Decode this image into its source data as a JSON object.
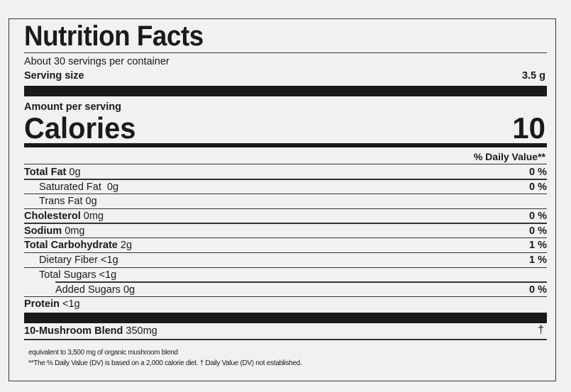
{
  "title": "Nutrition Facts",
  "servings_per_container": "About 30 servings per container",
  "serving_size": {
    "label": "Serving size",
    "value": "3.5 g"
  },
  "amount_per_serving": "Amount per serving",
  "calories": {
    "label": "Calories",
    "value": "10"
  },
  "daily_value_header": "% Daily Value**",
  "nutrients": [
    {
      "name": "Total Fat",
      "amount": "0g",
      "dv": "0 %",
      "bold": true,
      "indent": 0
    },
    {
      "name": "Saturated Fat",
      "amount": " 0g",
      "dv": "0 %",
      "bold": false,
      "indent": 1
    },
    {
      "name": "Trans Fat",
      "amount": "0g",
      "dv": "",
      "bold": false,
      "indent": 1
    },
    {
      "name": "Cholesterol",
      "amount": "0mg",
      "dv": "0 %",
      "bold": true,
      "indent": 0
    },
    {
      "name": "Sodium",
      "amount": "0mg",
      "dv": "0 %",
      "bold": true,
      "indent": 0
    },
    {
      "name": "Total Carbohydrate",
      "amount": "2g",
      "dv": "1 %",
      "bold": true,
      "indent": 0
    },
    {
      "name": "Dietary Fiber",
      "amount": "<1g",
      "dv": "1 %",
      "bold": false,
      "indent": 1
    },
    {
      "name": "Total Sugars",
      "amount": "<1g",
      "dv": "",
      "bold": false,
      "indent": 1
    },
    {
      "name": "Added Sugars",
      "amount": "0g",
      "dv": "0 %",
      "bold": false,
      "indent": 2
    },
    {
      "name": "Protein",
      "amount": "<1g",
      "dv": "",
      "bold": true,
      "indent": 0
    }
  ],
  "blend": {
    "name": "10-Mushroom Blend",
    "amount": "350mg",
    "dv": "†"
  },
  "footnotes": [
    "equivalent to 3,500 mg of organic mushroom blend",
    "**The % Daily Value (DV) is based on a 2,000  calorie diet.  † Daily Value (DV) not established."
  ]
}
